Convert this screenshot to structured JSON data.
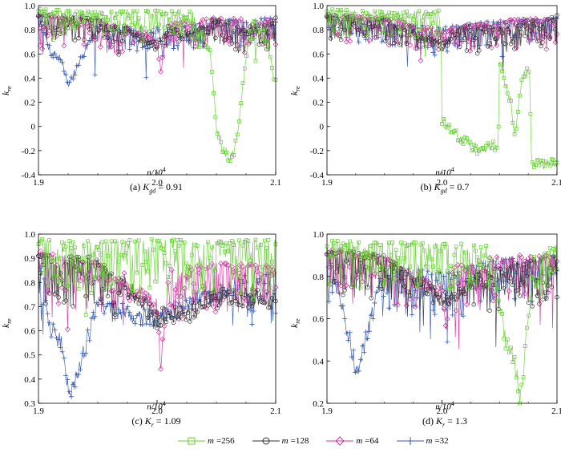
{
  "chart_data": [
    {
      "type": "line",
      "caption_prefix": "(a) ",
      "caption_var": "K",
      "caption_sub": "gd",
      "caption_value": " = 0.91",
      "ylabel": "k",
      "ylabel_sub": "re",
      "xlabel": "n/10",
      "xlabel_sup": "4",
      "xlim": [
        1.9,
        2.1
      ],
      "ylim": [
        -0.4,
        1.0
      ],
      "xticks": [
        "1.9",
        "2.0",
        "2.1"
      ],
      "yticks": [
        "-0.4",
        "-0.2",
        "0",
        "0.2",
        "0.4",
        "0.6",
        "0.8",
        "1.0"
      ],
      "xtick_values": [
        1.9,
        2.0,
        2.1
      ],
      "ytick_values": [
        -0.4,
        -0.2,
        0,
        0.2,
        0.4,
        0.6,
        0.8,
        1.0
      ],
      "series": [
        {
          "name": "m=256",
          "x": [
            1.9,
            1.95,
            2.0,
            2.03,
            2.045,
            2.05,
            2.055,
            2.06,
            2.065,
            2.07,
            2.075,
            2.08,
            2.09,
            2.1
          ],
          "y": [
            0.97,
            0.95,
            0.96,
            0.95,
            0.6,
            0.0,
            -0.2,
            -0.27,
            -0.22,
            0.1,
            0.6,
            0.9,
            0.8,
            0.35
          ]
        },
        {
          "name": "m=128",
          "x": [
            1.9,
            1.95,
            2.0,
            2.01,
            2.02,
            2.05,
            2.08,
            2.1
          ],
          "y": [
            0.93,
            0.9,
            0.66,
            0.85,
            0.72,
            0.9,
            0.78,
            0.9
          ]
        },
        {
          "name": "m=64",
          "x": [
            1.9,
            1.95,
            2.0,
            2.003,
            2.01,
            2.05,
            2.1
          ],
          "y": [
            0.92,
            0.88,
            0.7,
            0.45,
            0.85,
            0.9,
            0.88
          ]
        },
        {
          "name": "m=32",
          "x": [
            1.9,
            1.91,
            1.92,
            1.925,
            1.95,
            2.0,
            2.05,
            2.1
          ],
          "y": [
            0.92,
            0.62,
            0.55,
            0.33,
            0.85,
            0.8,
            0.88,
            0.9
          ]
        }
      ]
    },
    {
      "type": "line",
      "caption_prefix": "(b) ",
      "caption_var": "K",
      "caption_sub": "gd",
      "caption_value": " = 0.7",
      "ylabel": "k",
      "ylabel_sub": "re",
      "xlabel": "n/10",
      "xlabel_sup": "4",
      "xlim": [
        1.9,
        2.1
      ],
      "ylim": [
        -0.4,
        1.0
      ],
      "xticks": [
        "1.9",
        "2.0",
        "2.1"
      ],
      "yticks": [
        "-0.4",
        "-0.2",
        "0",
        "0.2",
        "0.4",
        "0.6",
        "0.8",
        "1.0"
      ],
      "xtick_values": [
        1.9,
        2.0,
        2.1
      ],
      "ytick_values": [
        -0.4,
        -0.2,
        0,
        0.2,
        0.4,
        0.6,
        0.8,
        1.0
      ],
      "series": [
        {
          "name": "m=256",
          "x": [
            1.9,
            1.95,
            1.999,
            2.0,
            2.01,
            2.03,
            2.049,
            2.05,
            2.06,
            2.063,
            2.07,
            2.076,
            2.078,
            2.09,
            2.1
          ],
          "y": [
            0.97,
            0.95,
            0.96,
            0.05,
            -0.05,
            -0.2,
            -0.15,
            0.5,
            0.2,
            -0.1,
            0.4,
            0.5,
            -0.3,
            -0.32,
            -0.3
          ]
        },
        {
          "name": "m=128",
          "x": [
            1.9,
            1.95,
            2.0,
            2.02,
            2.05,
            2.1
          ],
          "y": [
            0.93,
            0.9,
            0.66,
            0.85,
            0.82,
            0.92
          ]
        },
        {
          "name": "m=64",
          "x": [
            1.9,
            1.95,
            2.0,
            2.05,
            2.1
          ],
          "y": [
            0.92,
            0.9,
            0.8,
            0.88,
            0.9
          ]
        },
        {
          "name": "m=32",
          "x": [
            1.9,
            1.95,
            2.0,
            2.05,
            2.1
          ],
          "y": [
            0.92,
            0.88,
            0.82,
            0.88,
            0.9
          ]
        }
      ]
    },
    {
      "type": "line",
      "caption_prefix": "(c) ",
      "caption_var": "K",
      "caption_sub": "r",
      "caption_value": " = 1.09",
      "ylabel": "k",
      "ylabel_sub": "re",
      "xlabel": "n/10",
      "xlabel_sup": "4",
      "xlim": [
        1.9,
        2.1
      ],
      "ylim": [
        0.3,
        1.0
      ],
      "xticks": [
        "1.9",
        "2.0",
        "2.1"
      ],
      "yticks": [
        "0.3",
        "0.4",
        "0.5",
        "0.6",
        "0.7",
        "0.8",
        "0.9",
        "1.0"
      ],
      "xtick_values": [
        1.9,
        2.0,
        2.1
      ],
      "ytick_values": [
        0.3,
        0.4,
        0.5,
        0.6,
        0.7,
        0.8,
        0.9,
        1.0
      ],
      "series": [
        {
          "name": "m=256",
          "x": [
            1.9,
            1.95,
            2.0,
            2.05,
            2.1
          ],
          "y": [
            0.98,
            0.97,
            0.98,
            0.97,
            0.98
          ]
        },
        {
          "name": "m=128",
          "x": [
            1.9,
            1.95,
            2.0,
            2.03,
            2.06,
            2.1
          ],
          "y": [
            0.93,
            0.9,
            0.65,
            0.68,
            0.75,
            0.72
          ]
        },
        {
          "name": "m=64",
          "x": [
            1.9,
            1.95,
            2.0,
            2.003,
            2.01,
            2.05,
            2.1
          ],
          "y": [
            0.93,
            0.88,
            0.7,
            0.45,
            0.85,
            0.88,
            0.87
          ]
        },
        {
          "name": "m=32",
          "x": [
            1.9,
            1.91,
            1.92,
            1.926,
            1.95,
            2.0,
            2.05,
            2.1
          ],
          "y": [
            0.93,
            0.6,
            0.55,
            0.33,
            0.7,
            0.65,
            0.75,
            0.85
          ]
        }
      ]
    },
    {
      "type": "line",
      "caption_prefix": "(d) ",
      "caption_var": "K",
      "caption_sub": "r",
      "caption_value": " = 1.3",
      "ylabel": "k",
      "ylabel_sub": "re",
      "xlabel": "n/10",
      "xlabel_sup": "4",
      "xlim": [
        1.9,
        2.1
      ],
      "ylim": [
        0.2,
        1.0
      ],
      "xticks": [
        "1.9",
        "2.0",
        "2.1"
      ],
      "yticks": [
        "0.2",
        "0.4",
        "0.6",
        "0.8",
        "1.0"
      ],
      "xtick_values": [
        1.9,
        2.0,
        2.1
      ],
      "ytick_values": [
        0.2,
        0.4,
        0.6,
        0.8,
        1.0
      ],
      "series": [
        {
          "name": "m=256",
          "x": [
            1.9,
            1.95,
            2.0,
            2.04,
            2.05,
            2.055,
            2.06,
            2.065,
            2.068,
            2.075,
            2.08,
            2.1
          ],
          "y": [
            0.97,
            0.96,
            0.96,
            0.95,
            0.7,
            0.5,
            0.45,
            0.35,
            0.2,
            0.6,
            0.9,
            0.95
          ]
        },
        {
          "name": "m=128",
          "x": [
            1.9,
            1.95,
            2.0,
            2.05,
            2.1
          ],
          "y": [
            0.93,
            0.9,
            0.68,
            0.85,
            0.9
          ]
        },
        {
          "name": "m=64",
          "x": [
            1.9,
            1.95,
            2.0,
            2.003,
            2.01,
            2.05,
            2.1
          ],
          "y": [
            0.93,
            0.9,
            0.72,
            0.55,
            0.85,
            0.9,
            0.9
          ]
        },
        {
          "name": "m=32",
          "x": [
            1.9,
            1.92,
            1.926,
            1.95,
            2.0,
            2.05,
            2.1
          ],
          "y": [
            0.93,
            0.5,
            0.33,
            0.85,
            0.82,
            0.88,
            0.9
          ]
        }
      ]
    }
  ],
  "legend": [
    {
      "name": "m",
      "value": "=256",
      "color": "#66cc33",
      "marker": "square"
    },
    {
      "name": "m",
      "value": "=128",
      "color": "#333333",
      "marker": "circle"
    },
    {
      "name": "m",
      "value": "=64",
      "color": "#cc3399",
      "marker": "diamond"
    },
    {
      "name": "m",
      "value": "=32",
      "color": "#3355aa",
      "marker": "plus"
    }
  ]
}
